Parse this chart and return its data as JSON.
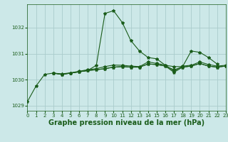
{
  "background_color": "#cce8e8",
  "grid_color": "#aacccc",
  "line_color": "#1a5c1a",
  "title": "Graphe pression niveau de la mer (hPa)",
  "xlim": [
    0,
    23
  ],
  "ylim": [
    1028.8,
    1032.9
  ],
  "yticks": [
    1029,
    1030,
    1031,
    1032
  ],
  "xticks": [
    0,
    1,
    2,
    3,
    4,
    5,
    6,
    7,
    8,
    9,
    10,
    11,
    12,
    13,
    14,
    15,
    16,
    17,
    18,
    19,
    20,
    21,
    22,
    23
  ],
  "series": [
    [
      1029.15,
      1029.75,
      1030.2,
      1030.25,
      1030.2,
      1030.25,
      1030.3,
      1030.35,
      1030.55,
      1032.55,
      1032.65,
      1032.2,
      1031.5,
      1031.1,
      1030.85,
      1030.8,
      1030.55,
      1030.5,
      1030.5,
      1031.1,
      1031.05,
      1030.85,
      1030.6,
      null
    ],
    [
      null,
      null,
      null,
      1030.25,
      1030.2,
      1030.25,
      1030.3,
      1030.35,
      1030.38,
      1030.42,
      1030.48,
      1030.5,
      1030.48,
      1030.48,
      1030.6,
      1030.58,
      1030.52,
      1030.38,
      1030.48,
      1030.52,
      1030.62,
      1030.52,
      1030.48,
      1030.52
    ],
    [
      null,
      null,
      null,
      1030.25,
      1030.2,
      1030.25,
      1030.3,
      1030.35,
      1030.38,
      1030.42,
      1030.48,
      1030.5,
      1030.48,
      1030.48,
      1030.6,
      1030.58,
      1030.52,
      1030.28,
      1030.48,
      1030.52,
      1030.62,
      1030.52,
      1030.48,
      1030.52
    ],
    [
      null,
      null,
      null,
      1030.25,
      1030.22,
      1030.26,
      1030.32,
      1030.38,
      1030.42,
      1030.5,
      1030.56,
      1030.55,
      1030.52,
      1030.5,
      1030.68,
      1030.62,
      1030.56,
      1030.32,
      1030.52,
      1030.55,
      1030.68,
      1030.58,
      1030.52,
      1030.55
    ]
  ],
  "marker": "*",
  "marker_size": 3,
  "line_width": 0.8,
  "title_fontsize": 7,
  "tick_fontsize": 5
}
